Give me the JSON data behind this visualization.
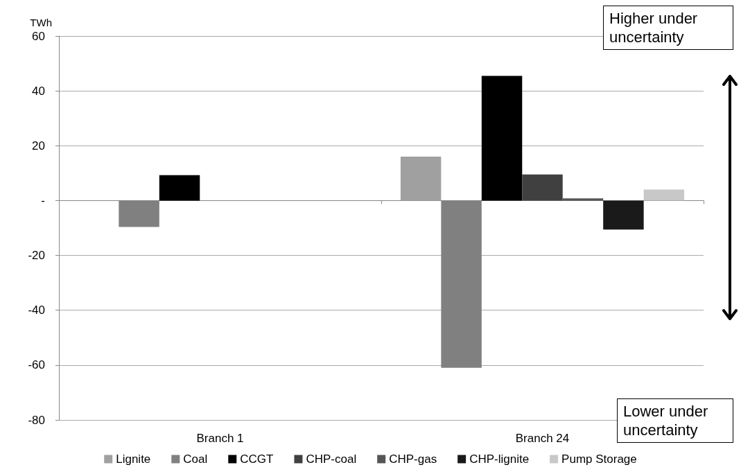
{
  "chart_data": {
    "type": "bar",
    "ylabel": "TWh",
    "categories": [
      "Branch 1",
      "Branch 24"
    ],
    "series": [
      {
        "name": "Lignite",
        "color": "#a0a0a0",
        "values": [
          null,
          16
        ]
      },
      {
        "name": "Coal",
        "color": "#808080",
        "values": [
          -9.6,
          -61
        ]
      },
      {
        "name": "CCGT",
        "color": "#000000",
        "values": [
          9.3,
          45.5
        ]
      },
      {
        "name": "CHP-coal",
        "color": "#404040",
        "values": [
          null,
          9.5
        ]
      },
      {
        "name": "CHP-gas",
        "color": "#555555",
        "values": [
          null,
          0.8
        ]
      },
      {
        "name": "CHP-lignite",
        "color": "#1a1a1a",
        "values": [
          null,
          -10.6
        ]
      },
      {
        "name": "Pump Storage",
        "color": "#c8c8c8",
        "values": [
          null,
          4
        ]
      }
    ],
    "ylim": [
      -80,
      60
    ],
    "yticks": [
      -80,
      -60,
      -40,
      -20,
      {
        "value": 0,
        "label": "-"
      },
      20,
      40,
      60
    ],
    "grid": "y",
    "legend": "bottom",
    "annotations": [
      "Higher under uncertainty",
      "Lower under uncertainty"
    ]
  }
}
